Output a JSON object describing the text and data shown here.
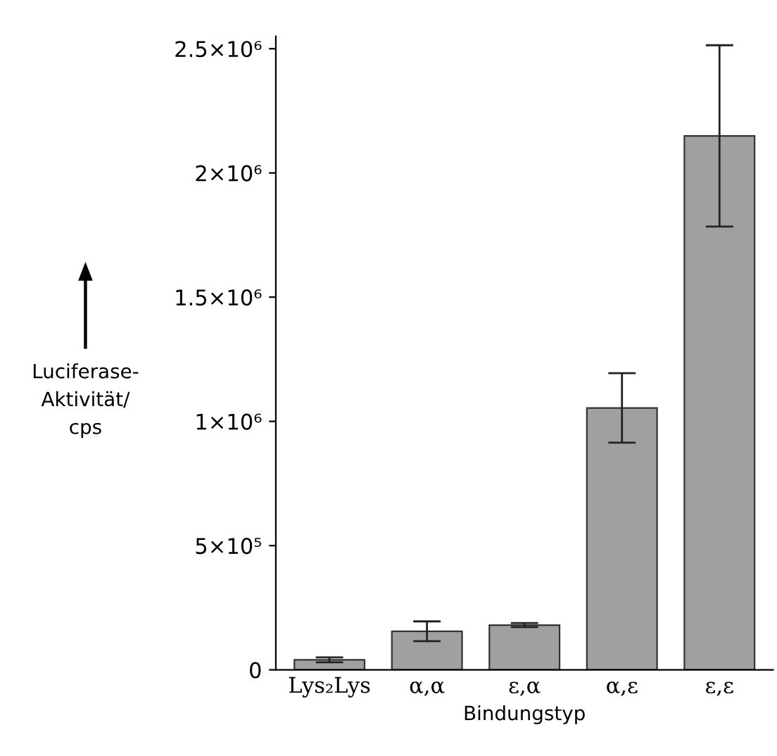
{
  "chart_data": {
    "type": "bar",
    "categories": [
      "Lys₂Lys",
      "α,α",
      "ε,α",
      "α,ε",
      "ε,ε"
    ],
    "values": [
      40000,
      155000,
      180000,
      1054000,
      2149000
    ],
    "errors": [
      10000,
      40000,
      8000,
      140000,
      365000
    ],
    "color": "#a0a0a0",
    "xlabel": "Bindungstyp",
    "ylabel": "Luciferase-\nAktivität/\ncps",
    "ylim": [
      0,
      2550000
    ],
    "yticks": [
      {
        "value": 0,
        "label": "0"
      },
      {
        "value": 500000,
        "label": "5×10⁵"
      },
      {
        "value": 1000000,
        "label": "1×10⁶"
      },
      {
        "value": 1500000,
        "label": "1.5×10⁶"
      },
      {
        "value": 2000000,
        "label": "2×10⁶"
      },
      {
        "value": 2500000,
        "label": "2.5×10⁶"
      }
    ],
    "grid": false
  }
}
